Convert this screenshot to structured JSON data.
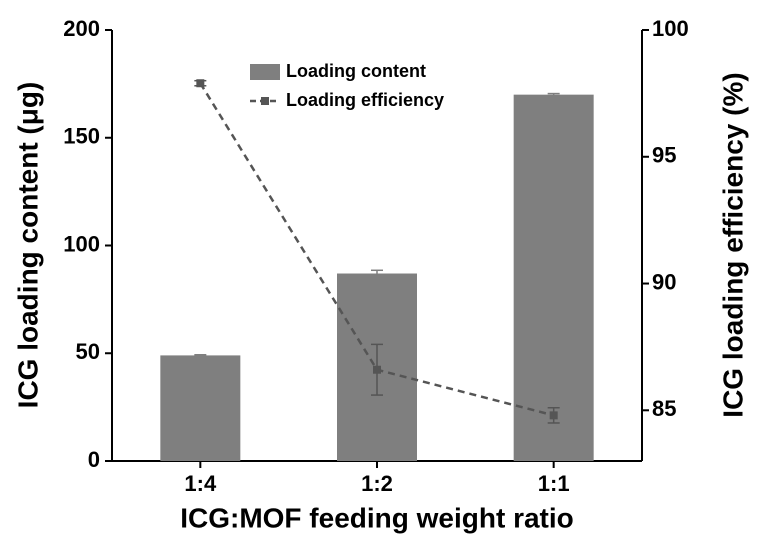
{
  "chart_data": {
    "type": "bar",
    "xlabel": "ICG:MOF feeding weight ratio",
    "ylabel": "ICG loading content (μg)",
    "y2label": "ICG loading efficiency (%)",
    "categories": [
      "1:4",
      "1:2",
      "1:1"
    ],
    "series": [
      {
        "name": "Loading content",
        "type": "bar",
        "color": "#7f7f7f",
        "values": [
          49,
          87,
          170
        ],
        "errors": [
          0.3,
          1.5,
          0.5
        ]
      },
      {
        "name": "Loading efficiency",
        "type": "line",
        "axis": "y2",
        "color": "#555555",
        "values": [
          97.9,
          86.6,
          84.8
        ],
        "errors": [
          0.1,
          1.0,
          0.3
        ]
      }
    ],
    "ylim": [
      0,
      200
    ],
    "yticks": [
      0,
      50,
      100,
      150,
      200
    ],
    "y2lim": [
      83,
      100
    ],
    "y2ticks": [
      85,
      90,
      95,
      100
    ],
    "legend": "upper center"
  }
}
